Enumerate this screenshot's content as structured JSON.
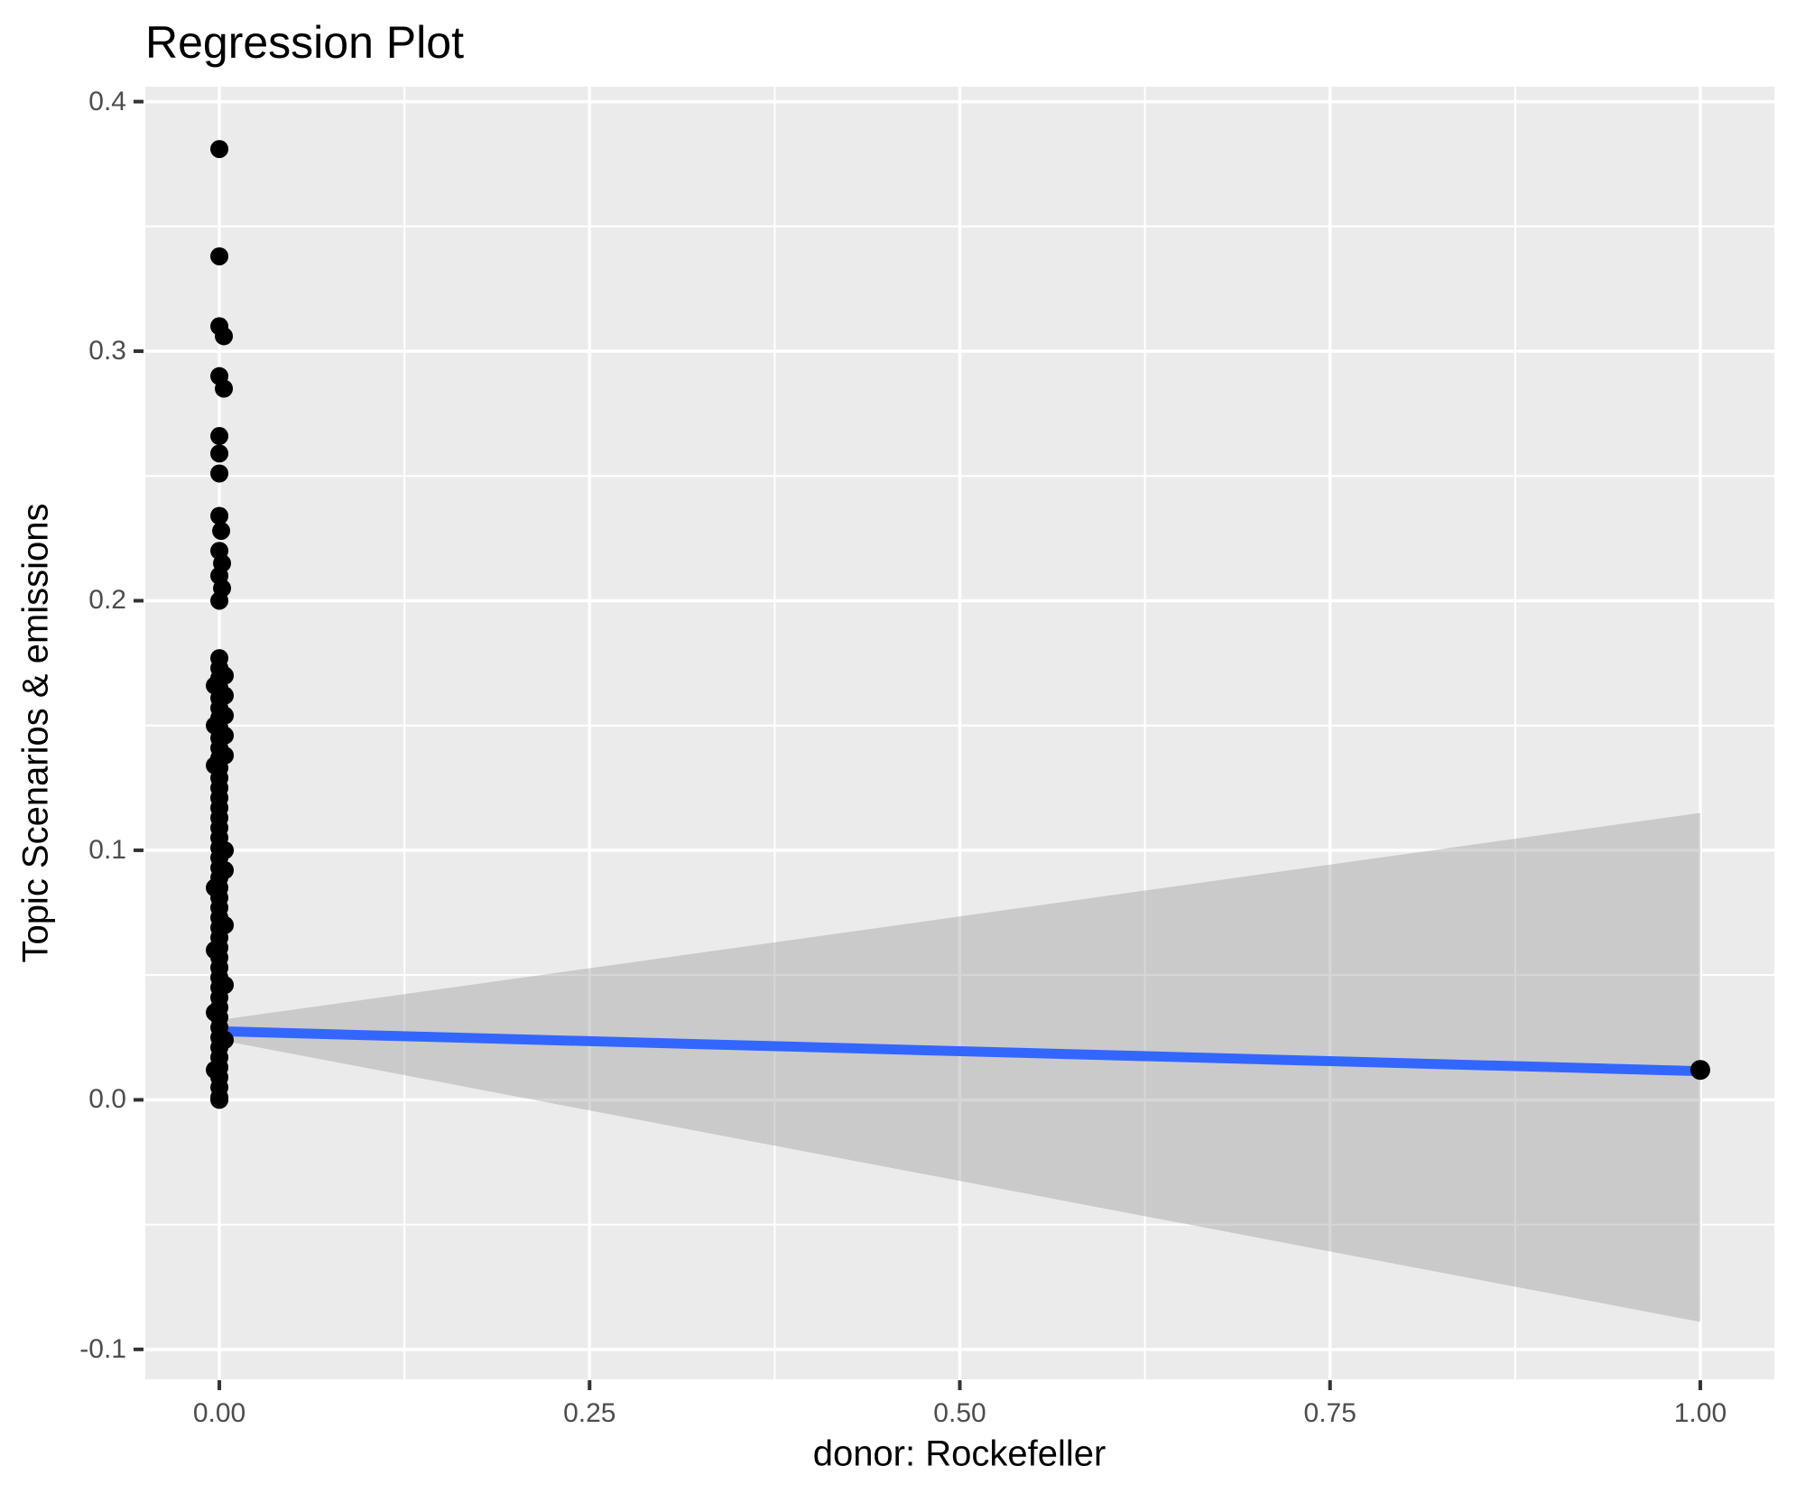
{
  "title": "Regression Plot",
  "colors": {
    "panel_background": "#EBEBEB",
    "gridline": "#FFFFFF",
    "ribbon": "#999999",
    "ribbon_opacity": 0.4,
    "regression_line": "#3366FF",
    "point": "#000000",
    "tick_label": "#4D4D4D",
    "tick_mark": "#333333",
    "title_text": "#000000"
  },
  "chart_data": {
    "type": "scatter",
    "title": "Regression Plot",
    "xlabel": "donor: Rockefeller",
    "ylabel": "Topic Scenarios & emissions",
    "xlim": [
      -0.05,
      1.05
    ],
    "ylim": [
      -0.112,
      0.406
    ],
    "grid": true,
    "legend": "none",
    "x_ticks": {
      "values": [
        0,
        0.25,
        0.5,
        0.75,
        1
      ],
      "labels": [
        "0.00",
        "0.25",
        "0.50",
        "0.75",
        "1.00"
      ]
    },
    "y_ticks": {
      "values": [
        0.4,
        0.3,
        0.2,
        0.1,
        0,
        -0.1
      ],
      "labels": [
        "0.4",
        "0.3",
        "0.2",
        "0.1",
        "0.0",
        "-0.1"
      ]
    },
    "x_minor": [
      0.125,
      0.375,
      0.625,
      0.875
    ],
    "y_minor": [
      0.35,
      0.25,
      0.15,
      0.05,
      -0.05
    ],
    "series": [
      {
        "name": "observations at donor=0",
        "type": "points",
        "x": 0,
        "y_dx": [
          [
            0.381,
            0
          ],
          [
            0.338,
            0
          ],
          [
            0.31,
            0
          ],
          [
            0.306,
            5
          ],
          [
            0.29,
            0
          ],
          [
            0.285,
            5
          ],
          [
            0.266,
            0
          ],
          [
            0.259,
            0
          ],
          [
            0.251,
            0
          ],
          [
            0.234,
            0
          ],
          [
            0.228,
            2
          ],
          [
            0.22,
            0
          ],
          [
            0.215,
            3
          ],
          [
            0.21,
            0
          ],
          [
            0.205,
            3
          ],
          [
            0.2,
            0
          ],
          [
            0.177,
            0
          ],
          [
            0.173,
            0
          ],
          [
            0.17,
            6
          ],
          [
            0.169,
            0
          ],
          [
            0.166,
            -5
          ],
          [
            0.165,
            0
          ],
          [
            0.162,
            6
          ],
          [
            0.161,
            0
          ],
          [
            0.157,
            0
          ],
          [
            0.154,
            6
          ],
          [
            0.153,
            0
          ],
          [
            0.15,
            -5
          ],
          [
            0.149,
            0
          ],
          [
            0.146,
            6
          ],
          [
            0.145,
            0
          ],
          [
            0.141,
            0
          ],
          [
            0.138,
            6
          ],
          [
            0.137,
            0
          ],
          [
            0.134,
            -5
          ],
          [
            0.133,
            0
          ],
          [
            0.129,
            0
          ],
          [
            0.125,
            0
          ],
          [
            0.121,
            0
          ],
          [
            0.117,
            0
          ],
          [
            0.113,
            0
          ],
          [
            0.109,
            0
          ],
          [
            0.105,
            0
          ],
          [
            0.101,
            0
          ],
          [
            0.1,
            6
          ],
          [
            0.097,
            0
          ],
          [
            0.093,
            0
          ],
          [
            0.092,
            6
          ],
          [
            0.089,
            0
          ],
          [
            0.085,
            -5
          ],
          [
            0.085,
            0
          ],
          [
            0.081,
            0
          ],
          [
            0.077,
            0
          ],
          [
            0.073,
            0
          ],
          [
            0.07,
            6
          ],
          [
            0.069,
            0
          ],
          [
            0.065,
            0
          ],
          [
            0.061,
            0
          ],
          [
            0.06,
            -5
          ],
          [
            0.057,
            0
          ],
          [
            0.053,
            0
          ],
          [
            0.049,
            0
          ],
          [
            0.046,
            6
          ],
          [
            0.045,
            0
          ],
          [
            0.041,
            0
          ],
          [
            0.037,
            0
          ],
          [
            0.035,
            -5
          ],
          [
            0.033,
            0
          ],
          [
            0.029,
            0
          ],
          [
            0.025,
            0
          ],
          [
            0.024,
            6
          ],
          [
            0.021,
            0
          ],
          [
            0.017,
            0
          ],
          [
            0.013,
            0
          ],
          [
            0.012,
            -5
          ],
          [
            0.009,
            0
          ],
          [
            0.005,
            0
          ],
          [
            0.001,
            0
          ],
          [
            0.0,
            0
          ]
        ]
      },
      {
        "name": "observation at donor=1",
        "type": "points",
        "x": 1,
        "y_dx": [
          [
            0.012,
            0
          ]
        ]
      },
      {
        "name": "linear fit",
        "type": "line",
        "x": [
          0,
          1
        ],
        "y": [
          0.0275,
          0.0115
        ]
      },
      {
        "name": "95% confidence band",
        "type": "ribbon",
        "x": [
          0,
          1
        ],
        "upper": [
          0.032,
          0.115
        ],
        "lower": [
          0.024,
          -0.089
        ]
      }
    ]
  }
}
